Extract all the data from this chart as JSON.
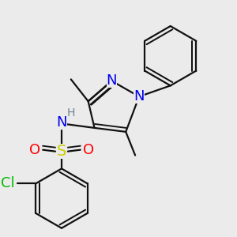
{
  "background_color": "#ebebeb",
  "atom_colors": {
    "N": "#0000ee",
    "O": "#ff0000",
    "S": "#cccc00",
    "Cl": "#00bb00",
    "H": "#708090",
    "C": "#111111"
  },
  "bond_color": "#111111",
  "bond_width": 1.6,
  "font_size_atoms": 12,
  "font_size_H": 10,
  "dbl_off": 0.013
}
